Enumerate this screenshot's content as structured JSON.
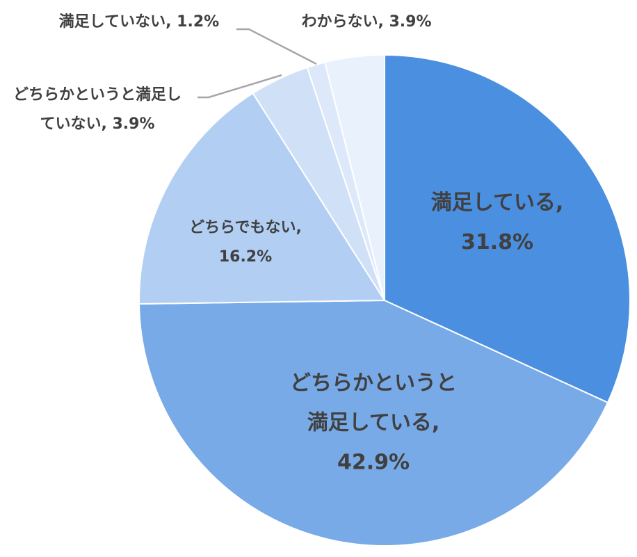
{
  "chart_data": {
    "type": "pie",
    "categories": [
      "満足している,",
      "どちらかというと満足している,",
      "どちらでもない,",
      "どちらかというと満足していない,",
      "満足していない,",
      "わからない,"
    ],
    "values": [
      31.8,
      42.9,
      16.2,
      3.9,
      1.2,
      3.9
    ],
    "value_labels": [
      "31.8%",
      "42.9%",
      "16.2%",
      "3.9%",
      "1.2%",
      "3.9%"
    ],
    "colors": [
      "#4a8fe0",
      "#78aae8",
      "#b2cff3",
      "#d0e1f7",
      "#dde9fa",
      "#e9f1fc"
    ]
  }
}
